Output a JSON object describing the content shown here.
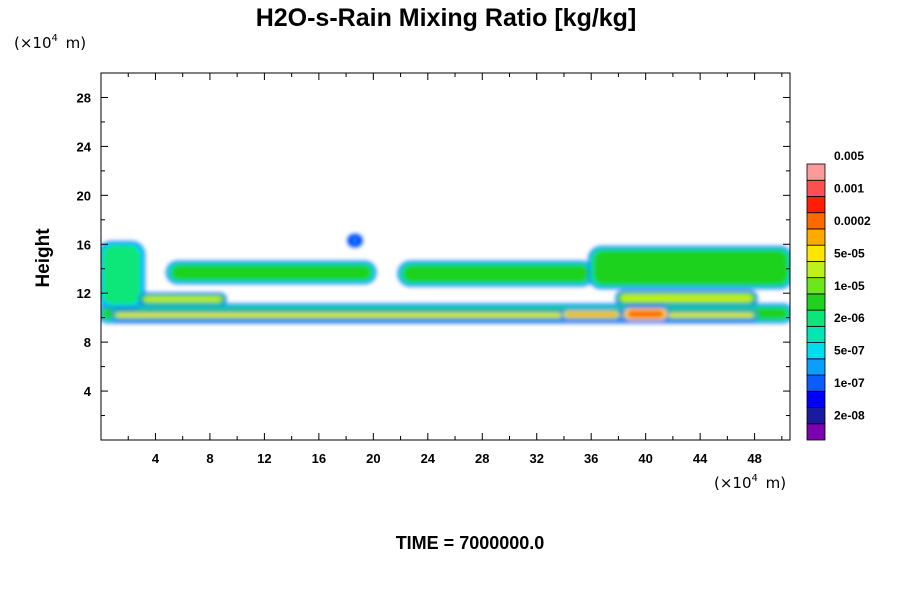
{
  "chart_data": {
    "type": "heatmap",
    "title": "H2O-s-Rain Mixing Ratio [kg/kg]",
    "xlabel": "",
    "ylabel": "Height",
    "x_unit": {
      "prefix": "(×10",
      "exp": "4",
      "suffix": " m)"
    },
    "y_unit": {
      "prefix": "(×10",
      "exp": "4",
      "suffix": " m)"
    },
    "xlim": [
      0,
      50.6
    ],
    "ylim": [
      0,
      30
    ],
    "x_ticks": [
      "4",
      "8",
      "12",
      "16",
      "20",
      "24",
      "28",
      "32",
      "36",
      "40",
      "44",
      "48"
    ],
    "x_tick_values": [
      4,
      8,
      12,
      16,
      20,
      24,
      28,
      32,
      36,
      40,
      44,
      48
    ],
    "y_ticks": [
      "4",
      "8",
      "12",
      "16",
      "20",
      "24",
      "28"
    ],
    "y_tick_values": [
      4,
      8,
      12,
      16,
      20,
      24,
      28
    ],
    "colorbar": {
      "labels": [
        "2e-08",
        "1e-07",
        "5e-07",
        "2e-06",
        "1e-05",
        "5e-05",
        "0.0002",
        "0.001",
        "0.005"
      ],
      "colors": [
        "#7a00b0",
        "#1a1aa0",
        "#0000ff",
        "#0a5cff",
        "#0a9eff",
        "#00dcf0",
        "#00e6b4",
        "#0ae678",
        "#1ed21e",
        "#6ee61e",
        "#bef01e",
        "#ffe600",
        "#ffaa00",
        "#ff6a00",
        "#ff1e00",
        "#ff5050",
        "#ff9a9a"
      ]
    },
    "regions": [
      {
        "name": "main-rain-band",
        "x": [
          0,
          50.6
        ],
        "y": [
          9.8,
          10.9
        ],
        "level": 8
      },
      {
        "name": "main-band-core",
        "x": [
          1,
          48
        ],
        "y": [
          10.0,
          10.4
        ],
        "level": 11
      },
      {
        "name": "main-band-hot-36",
        "x": [
          34,
          38
        ],
        "y": [
          10.0,
          10.5
        ],
        "level": 12
      },
      {
        "name": "main-band-hot-40",
        "x": [
          38.5,
          41.5
        ],
        "y": [
          9.9,
          10.7
        ],
        "level": 13
      },
      {
        "name": "upper-layer-west",
        "x": [
          5,
          20
        ],
        "y": [
          13.0,
          14.4
        ],
        "level": 8
      },
      {
        "name": "upper-layer-mid",
        "x": [
          22,
          36
        ],
        "y": [
          12.8,
          14.4
        ],
        "level": 8
      },
      {
        "name": "upper-layer-east",
        "x": [
          36,
          50.6
        ],
        "y": [
          12.6,
          15.6
        ],
        "level": 8
      },
      {
        "name": "west-plume",
        "x": [
          0,
          3
        ],
        "y": [
          11.0,
          16.0
        ],
        "level": 7
      },
      {
        "name": "mid-layer-west",
        "x": [
          3,
          9
        ],
        "y": [
          11.2,
          11.8
        ],
        "level": 10
      },
      {
        "name": "mid-layer-east",
        "x": [
          38,
          48
        ],
        "y": [
          11.2,
          12.0
        ],
        "level": 10
      },
      {
        "name": "cell-19",
        "x": [
          18.3,
          19.0
        ],
        "y": [
          16.0,
          16.6
        ],
        "level": 4
      }
    ],
    "time_label": "TIME = 7000000.0"
  }
}
